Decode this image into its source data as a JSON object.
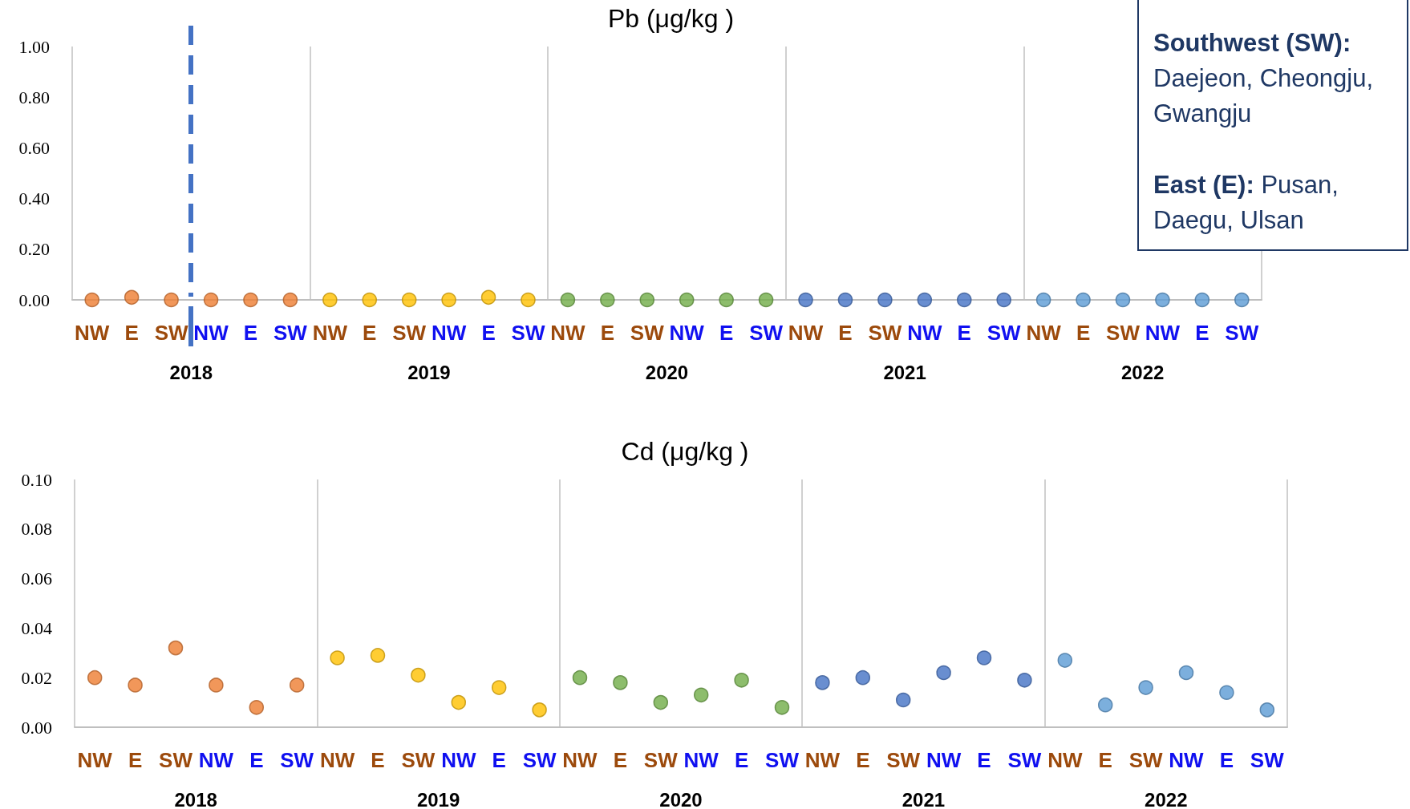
{
  "chart_data": [
    {
      "type": "scatter",
      "title": "Pb (μg/kg )",
      "categories": [
        "NW",
        "E",
        "SW",
        "NW",
        "E",
        "SW",
        "NW",
        "E",
        "SW",
        "NW",
        "E",
        "SW",
        "NW",
        "E",
        "SW",
        "NW",
        "E",
        "SW",
        "NW",
        "E",
        "SW",
        "NW",
        "E",
        "SW",
        "NW",
        "E",
        "SW",
        "NW",
        "E",
        "SW"
      ],
      "series": [
        {
          "color": "#ed7d31",
          "values": [
            0,
            0.01,
            0,
            0,
            0,
            0,
            null,
            null,
            null,
            null,
            null,
            null,
            null,
            null,
            null,
            null,
            null,
            null,
            null,
            null,
            null,
            null,
            null,
            null,
            null,
            null,
            null,
            null,
            null,
            null
          ]
        },
        {
          "color": "#ffc000",
          "values": [
            null,
            null,
            null,
            null,
            null,
            null,
            0,
            0,
            0,
            0,
            0.01,
            0,
            null,
            null,
            null,
            null,
            null,
            null,
            null,
            null,
            null,
            null,
            null,
            null,
            null,
            null,
            null,
            null,
            null,
            null
          ]
        },
        {
          "color": "#70ad47",
          "values": [
            null,
            null,
            null,
            null,
            null,
            null,
            null,
            null,
            null,
            null,
            null,
            null,
            0,
            0,
            0,
            0,
            0,
            0,
            null,
            null,
            null,
            null,
            null,
            null,
            null,
            null,
            null,
            null,
            null,
            null
          ]
        },
        {
          "color": "#4472c4",
          "values": [
            null,
            null,
            null,
            null,
            null,
            null,
            null,
            null,
            null,
            null,
            null,
            null,
            null,
            null,
            null,
            null,
            null,
            null,
            0,
            0,
            0,
            0,
            0,
            0,
            null,
            null,
            null,
            null,
            null,
            null
          ]
        },
        {
          "color": "#5b9bd5",
          "values": [
            null,
            null,
            null,
            null,
            null,
            null,
            null,
            null,
            null,
            null,
            null,
            null,
            null,
            null,
            null,
            null,
            null,
            null,
            null,
            null,
            null,
            null,
            null,
            null,
            0,
            0,
            0,
            0,
            0,
            0
          ]
        }
      ],
      "ylim": [
        0,
        1
      ],
      "yticks": [
        {
          "value": 0,
          "label": "0.00"
        },
        {
          "value": 0.2,
          "label": "0.20"
        },
        {
          "value": 0.4,
          "label": "0.40"
        },
        {
          "value": 0.6,
          "label": "0.60"
        },
        {
          "value": 0.8,
          "label": "0.80"
        },
        {
          "value": 1,
          "label": "1.00"
        }
      ],
      "grid": "x",
      "marker": "circle",
      "annotations": [
        "2018",
        "2019",
        "2020",
        "2021",
        "2022"
      ]
    },
    {
      "type": "scatter",
      "title": "Cd (μg/kg )",
      "categories": [
        "NW",
        "E",
        "SW",
        "NW",
        "E",
        "SW",
        "NW",
        "E",
        "SW",
        "NW",
        "E",
        "SW",
        "NW",
        "E",
        "SW",
        "NW",
        "E",
        "SW",
        "NW",
        "E",
        "SW",
        "NW",
        "E",
        "SW",
        "NW",
        "E",
        "SW",
        "NW",
        "E",
        "SW"
      ],
      "series": [
        {
          "color": "#ed7d31",
          "values": [
            0.02,
            0.017,
            0.032,
            0.017,
            0.008,
            0.017,
            null,
            null,
            null,
            null,
            null,
            null,
            null,
            null,
            null,
            null,
            null,
            null,
            null,
            null,
            null,
            null,
            null,
            null,
            null,
            null,
            null,
            null,
            null,
            null
          ]
        },
        {
          "color": "#ffc000",
          "values": [
            null,
            null,
            null,
            null,
            null,
            null,
            0.028,
            0.029,
            0.021,
            0.01,
            0.016,
            0.007,
            null,
            null,
            null,
            null,
            null,
            null,
            null,
            null,
            null,
            null,
            null,
            null,
            null,
            null,
            null,
            null,
            null,
            null
          ]
        },
        {
          "color": "#70ad47",
          "values": [
            null,
            null,
            null,
            null,
            null,
            null,
            null,
            null,
            null,
            null,
            null,
            null,
            0.02,
            0.018,
            0.01,
            0.013,
            0.019,
            0.008,
            null,
            null,
            null,
            null,
            null,
            null,
            null,
            null,
            null,
            null,
            null,
            null
          ]
        },
        {
          "color": "#4472c4",
          "values": [
            null,
            null,
            null,
            null,
            null,
            null,
            null,
            null,
            null,
            null,
            null,
            null,
            null,
            null,
            null,
            null,
            null,
            null,
            0.018,
            0.02,
            0.011,
            0.022,
            0.028,
            0.019,
            null,
            null,
            null,
            null,
            null,
            null
          ]
        },
        {
          "color": "#5b9bd5",
          "values": [
            null,
            null,
            null,
            null,
            null,
            null,
            null,
            null,
            null,
            null,
            null,
            null,
            null,
            null,
            null,
            null,
            null,
            null,
            null,
            null,
            null,
            null,
            null,
            null,
            0.027,
            0.009,
            0.016,
            0.022,
            0.014,
            0.007
          ]
        }
      ],
      "ylim": [
        0,
        0.1
      ],
      "yticks": [
        {
          "value": 0,
          "label": "0.00"
        },
        {
          "value": 0.02,
          "label": "0.02"
        },
        {
          "value": 0.04,
          "label": "0.04"
        },
        {
          "value": 0.06,
          "label": "0.06"
        },
        {
          "value": 0.08,
          "label": "0.08"
        },
        {
          "value": 0.1,
          "label": "0.10"
        }
      ],
      "grid": "x",
      "marker": "circle",
      "annotations": [
        "2018",
        "2019",
        "2020",
        "2021",
        "2022"
      ]
    },
    {
      "type": "other",
      "annotations": [
        "Southwest (SW):",
        "Daejeon, Cheongju, Gwangju",
        "East (E):",
        "Pusan, Daegu, Ulsan"
      ]
    }
  ]
}
